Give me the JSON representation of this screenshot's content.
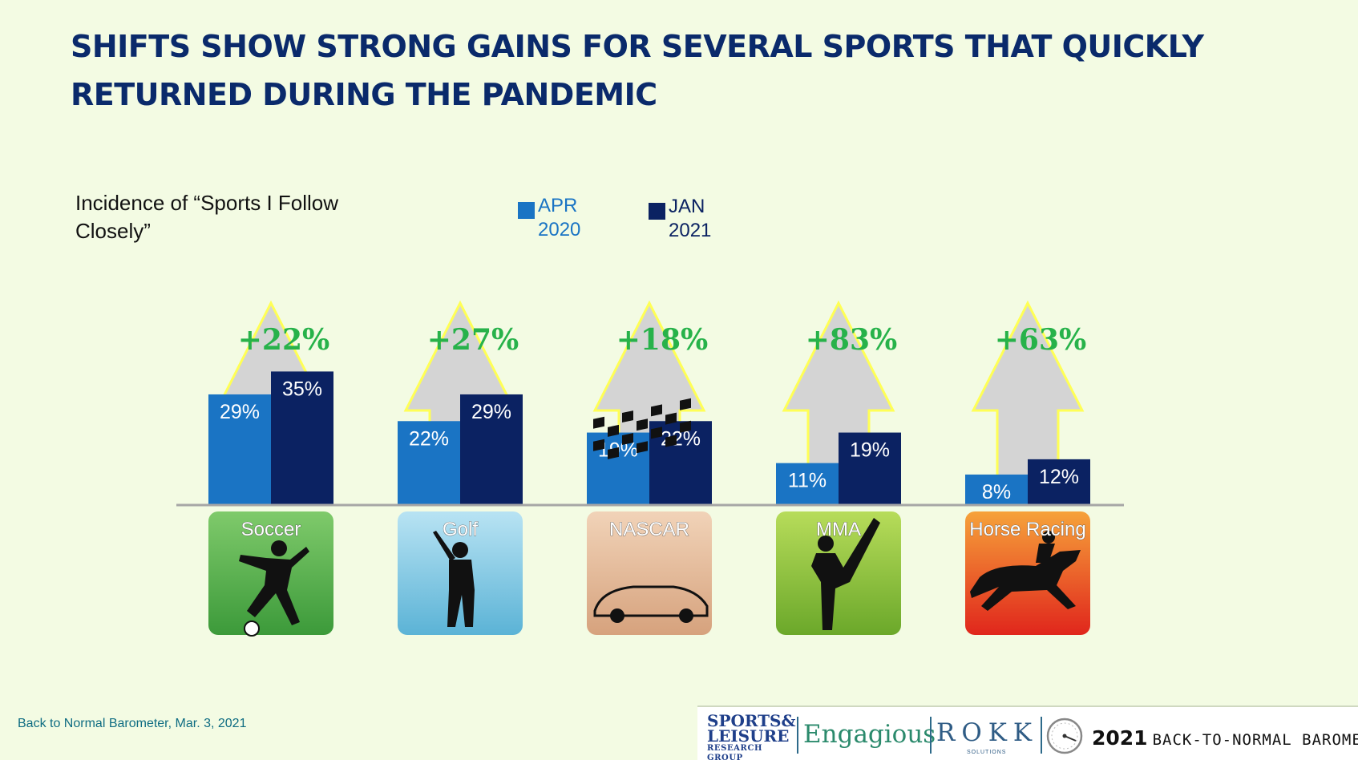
{
  "title": "SHIFTS SHOW STRONG GAINS FOR SEVERAL SPORTS THAT QUICKLY RETURNED DURING THE PANDEMIC",
  "footer": {
    "note": "Back to Normal Barometer, Mar. 3, 2021",
    "logos": {
      "sls_line1": "SPORTS&",
      "sls_line2": "LEISURE",
      "sls_line3": "RESEARCH GROUP",
      "engagious": "Engagious",
      "rokk": "ROKK",
      "rokk_sub": "SOLUTIONS",
      "barometer_year": "2021",
      "barometer_text": "BACK-TO-NORMAL BAROMETER"
    }
  },
  "colors": {
    "apr2020": "#1a74c4",
    "jan2021": "#0b2262",
    "gain_text": "#27b24a",
    "arrow_fill": "#d4d4d4",
    "arrow_stroke": "#ffff55",
    "title": "#0a2a6b"
  },
  "chart_data": {
    "type": "bar",
    "title": "Incidence of “Sports I Follow Closely”",
    "categories": [
      "Soccer",
      "Golf",
      "NASCAR",
      "MMA",
      "Horse Racing"
    ],
    "series": [
      {
        "name": "APR 2020",
        "values": [
          29,
          22,
          19,
          11,
          8
        ],
        "labels": [
          "29%",
          "22%",
          "19%",
          "11%",
          "8%"
        ]
      },
      {
        "name": "JAN 2021",
        "values": [
          35,
          29,
          22,
          19,
          12
        ],
        "labels": [
          "35%",
          "29%",
          "22%",
          "19%",
          "12%"
        ]
      }
    ],
    "gains": [
      "+22%",
      "+27%",
      "+18%",
      "+83%",
      "+63%"
    ],
    "category_icons": [
      "soccer-player-icon",
      "golfer-icon",
      "race-car-icon",
      "martial-artist-icon",
      "horse-jockey-icon"
    ],
    "category_icon_colors": [
      [
        "#7fca6b",
        "#3c9a3a"
      ],
      [
        "#b8e3f3",
        "#5bb3d6"
      ],
      [
        "#f1d3b8",
        "#d6a27d"
      ],
      [
        "#b7dc5a",
        "#6ba82a"
      ],
      [
        "#f6a23a",
        "#e0261c"
      ]
    ],
    "legend_position": "top",
    "ylim": [
      0,
      40
    ],
    "grid": false
  }
}
